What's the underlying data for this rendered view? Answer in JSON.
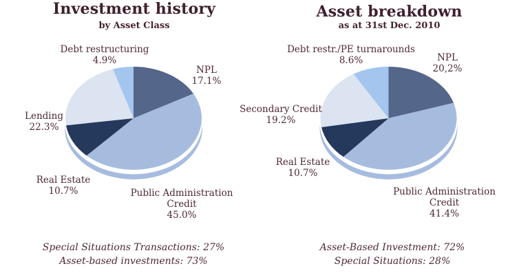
{
  "chart_data": [
    {
      "type": "pie",
      "title": "Investment history",
      "subtitle": "by Asset Class",
      "effect": "3d-rim",
      "start_angle_deg": 0,
      "rim_color": "#a6bcdf",
      "slices": [
        {
          "label": "NPL",
          "value": 17.1,
          "pct_label": "17.1%",
          "color": "#546689"
        },
        {
          "label": "Public Administration Credit",
          "value": 45.0,
          "pct_label": "45.0%",
          "color": "#a6bcdf"
        },
        {
          "label": "Real Estate",
          "value": 10.7,
          "pct_label": "10.7%",
          "color": "#24395c"
        },
        {
          "label": "Lending",
          "value": 22.3,
          "pct_label": "22.3%",
          "color": "#dce3f1"
        },
        {
          "label": "Debt restructuring",
          "value": 4.9,
          "pct_label": "4.9%",
          "color": "#a3c5ee"
        }
      ],
      "footnotes": [
        "Special Situations Transactions: 27%",
        "Asset-based investments: 73%"
      ]
    },
    {
      "type": "pie",
      "title": "Asset breakdown",
      "subtitle": "as at 31st Dec. 2010",
      "effect": "3d-rim",
      "start_angle_deg": 0,
      "rim_color": "#a6bcdf",
      "slices": [
        {
          "label": "NPL",
          "value": 20.2,
          "pct_label": "20,2%",
          "color": "#546689"
        },
        {
          "label": "Public Administration Credit",
          "value": 41.4,
          "pct_label": "41.4%",
          "color": "#a6bcdf"
        },
        {
          "label": "Real Estate",
          "value": 10.7,
          "pct_label": "10.7%",
          "color": "#24395c"
        },
        {
          "label": "Secondary Credit",
          "value": 19.2,
          "pct_label": "19.2%",
          "color": "#dce3f1"
        },
        {
          "label": "Debt restr./PE turnarounds",
          "value": 8.6,
          "pct_label": "8.6%",
          "color": "#a3c5ee"
        }
      ],
      "footnotes": [
        "Asset-Based Investment: 72%",
        "Special Situations: 28%"
      ]
    }
  ]
}
